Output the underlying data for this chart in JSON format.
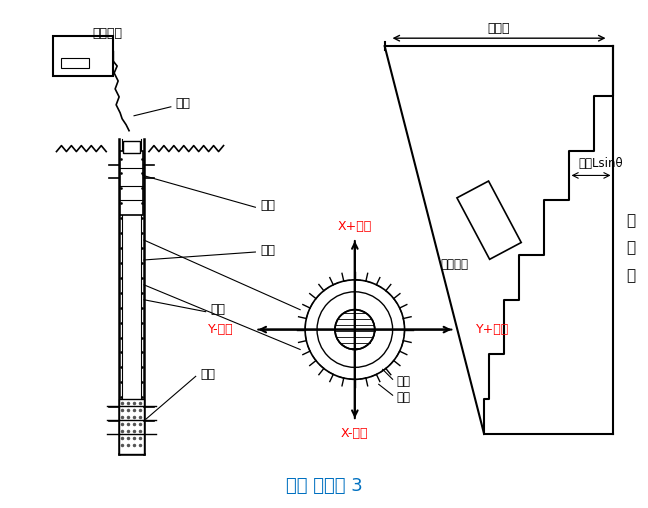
{
  "title": "测斜 原理图 3",
  "title_color": "#0070c0",
  "title_fontsize": 13,
  "background_color": "#ffffff",
  "line_color": "#000000",
  "red_color": "#ff0000",
  "labels": {
    "ce_du_shebei": "测读设备",
    "dian_lan": "电缆",
    "ce_tou": "测头",
    "zuan_kong": "钻孔",
    "dao_guan": "导管",
    "hui_tian": "回填",
    "x_plus": "X+方向",
    "x_minus": "X-方向",
    "y_plus": "Y+方向",
    "y_minus": "Y-方向",
    "dao_cao": "导槽",
    "dao_lun": "导轮",
    "zong_wei_yi": "总位移",
    "wei_yi_lsin": "位移Lsinθ",
    "ce_du_jian_ju": "测读间距",
    "yuan_zhun_xian_1": "原",
    "yuan_zhun_xian_2": "准",
    "yuan_zhun_xian_3": "线"
  }
}
